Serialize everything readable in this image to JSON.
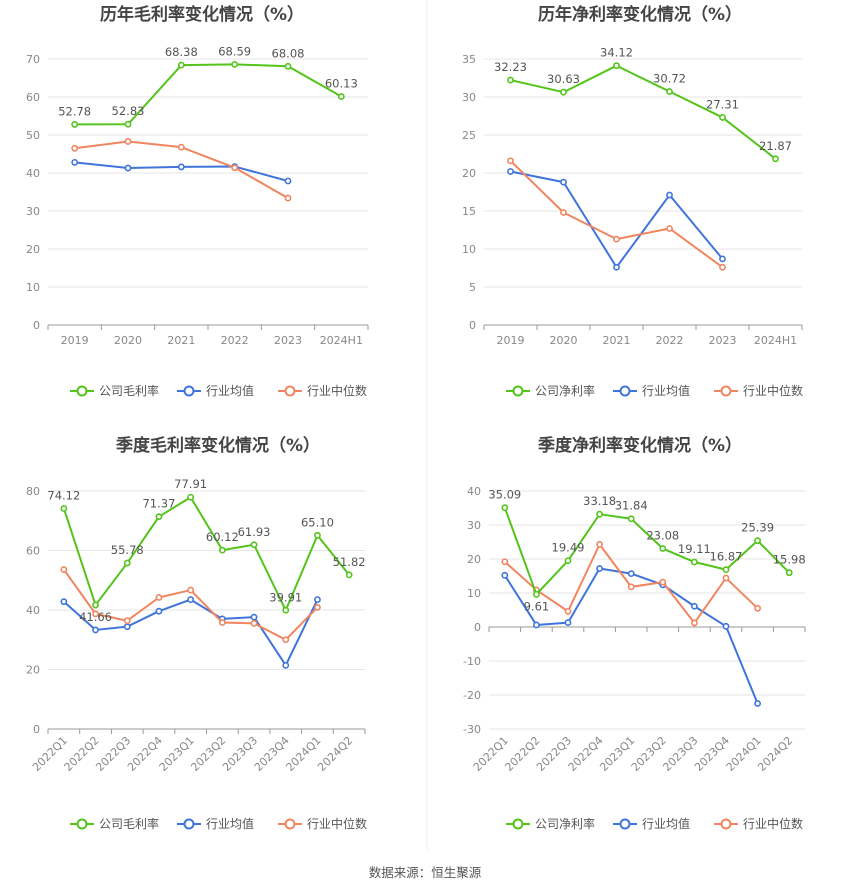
{
  "colors": {
    "company": "#52c41a",
    "avg": "#3f74dc",
    "median": "#f08560"
  },
  "source": "数据来源：恒生聚源",
  "chart_data": [
    {
      "type": "line",
      "title": "历年毛利率变化情况（%）",
      "categories": [
        "2019",
        "2020",
        "2021",
        "2022",
        "2023",
        "2024H1"
      ],
      "ylim": [
        0,
        70
      ],
      "yticks": [
        0,
        10,
        20,
        30,
        40,
        50,
        60,
        70
      ],
      "series": [
        {
          "name": "公司毛利率",
          "values": [
            52.78,
            52.83,
            68.38,
            68.59,
            68.08,
            60.13
          ],
          "labels": [
            "52.78",
            "52.83",
            "68.38",
            "68.59",
            "68.08",
            "60.13"
          ]
        },
        {
          "name": "行业均值",
          "values": [
            42.8,
            41.3,
            41.6,
            41.7,
            37.9,
            null
          ]
        },
        {
          "name": "行业中位数",
          "values": [
            46.5,
            48.3,
            46.8,
            41.4,
            33.4,
            null
          ]
        }
      ],
      "legend": "bottom"
    },
    {
      "type": "line",
      "title": "历年净利率变化情况（%）",
      "categories": [
        "2019",
        "2020",
        "2021",
        "2022",
        "2023",
        "2024H1"
      ],
      "ylim": [
        0,
        35
      ],
      "yticks": [
        0,
        5,
        10,
        15,
        20,
        25,
        30,
        35
      ],
      "series": [
        {
          "name": "公司净利率",
          "values": [
            32.23,
            30.63,
            34.12,
            30.72,
            27.31,
            21.87
          ],
          "labels": [
            "32.23",
            "30.63",
            "34.12",
            "30.72",
            "27.31",
            "21.87"
          ]
        },
        {
          "name": "行业均值",
          "values": [
            20.2,
            18.8,
            7.6,
            17.1,
            8.7,
            null
          ]
        },
        {
          "name": "行业中位数",
          "values": [
            21.6,
            14.8,
            11.3,
            12.7,
            7.6,
            null
          ]
        }
      ],
      "legend": "bottom"
    },
    {
      "type": "line",
      "title": "季度毛利率变化情况（%）",
      "categories": [
        "2022Q1",
        "2022Q2",
        "2022Q3",
        "2022Q4",
        "2023Q1",
        "2023Q2",
        "2023Q3",
        "2023Q4",
        "2024Q1",
        "2024Q2"
      ],
      "ylim": [
        0,
        80
      ],
      "yticks": [
        0,
        20,
        40,
        60,
        80
      ],
      "series": [
        {
          "name": "公司毛利率",
          "values": [
            74.12,
            41.66,
            55.78,
            71.37,
            77.91,
            60.12,
            61.93,
            39.91,
            65.1,
            51.82
          ],
          "labels": [
            "74.12",
            "41.66",
            "55.78",
            "71.37",
            "77.91",
            "60.12",
            "61.93",
            "39.91",
            "65.10",
            "51.82"
          ]
        },
        {
          "name": "行业均值",
          "values": [
            42.8,
            33.3,
            34.4,
            39.6,
            43.5,
            37.0,
            37.6,
            21.4,
            43.5,
            null
          ]
        },
        {
          "name": "行业中位数",
          "values": [
            53.6,
            38.7,
            36.4,
            44.2,
            46.7,
            35.8,
            35.5,
            30.0,
            40.9,
            null
          ]
        }
      ],
      "legend": "bottom"
    },
    {
      "type": "line",
      "title": "季度净利率变化情况（%）",
      "categories": [
        "2022Q1",
        "2022Q2",
        "2022Q3",
        "2022Q4",
        "2023Q1",
        "2023Q2",
        "2023Q3",
        "2023Q4",
        "2024Q1",
        "2024Q2"
      ],
      "ylim": [
        -30,
        40
      ],
      "yticks": [
        -30,
        -20,
        -10,
        0,
        10,
        20,
        30,
        40
      ],
      "series": [
        {
          "name": "公司净利率",
          "values": [
            35.09,
            9.61,
            19.49,
            33.18,
            31.84,
            23.08,
            19.11,
            16.87,
            25.39,
            15.98
          ],
          "labels": [
            "35.09",
            "9.61",
            "19.49",
            "33.18",
            "31.84",
            "23.08",
            "19.11",
            "16.87",
            "25.39",
            "15.98"
          ]
        },
        {
          "name": "行业均值",
          "values": [
            15.2,
            0.6,
            1.3,
            17.2,
            15.7,
            12.4,
            6.1,
            0.2,
            -22.5,
            null
          ]
        },
        {
          "name": "行业中位数",
          "values": [
            19.2,
            10.9,
            4.6,
            24.3,
            11.8,
            13.2,
            1.2,
            14.4,
            5.5,
            null
          ]
        }
      ],
      "legend": "bottom"
    }
  ]
}
